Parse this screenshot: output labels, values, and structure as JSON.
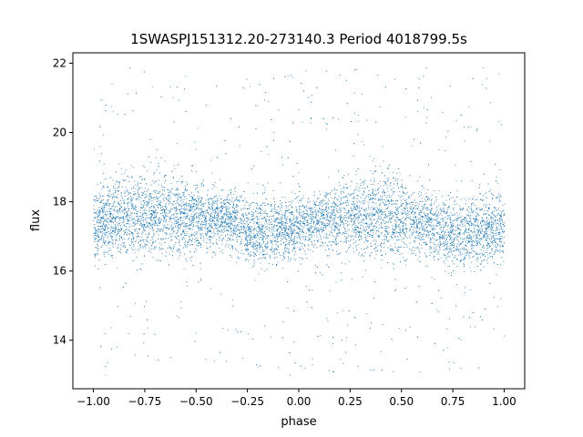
{
  "chart_data": {
    "type": "scatter",
    "title": "1SWASPJ151312.20-273140.3 Period 4018799.5s",
    "xlabel": "phase",
    "ylabel": "flux",
    "xlim": [
      -1.1,
      1.1
    ],
    "ylim": [
      12.6,
      22.3
    ],
    "xticks": [
      -1.0,
      -0.75,
      -0.5,
      -0.25,
      0.0,
      0.25,
      0.5,
      0.75,
      1.0
    ],
    "xtick_labels": [
      "−1.00",
      "−0.75",
      "−0.50",
      "−0.25",
      "0.00",
      "0.25",
      "0.50",
      "0.75",
      "1.00"
    ],
    "yticks": [
      14,
      16,
      18,
      20,
      22
    ],
    "ytick_labels": [
      "14",
      "16",
      "18",
      "20",
      "22"
    ],
    "grid": false,
    "point_color": "#1f77b4",
    "phase_range": [
      -1.0,
      1.0
    ],
    "flux_band": {
      "profile": [
        {
          "phase": -1.0,
          "center": 17.3,
          "halfwidth": 0.9
        },
        {
          "phase": -0.9,
          "center": 17.6,
          "halfwidth": 1.0
        },
        {
          "phase": -0.75,
          "center": 17.6,
          "halfwidth": 1.1
        },
        {
          "phase": -0.55,
          "center": 17.6,
          "halfwidth": 1.0
        },
        {
          "phase": -0.35,
          "center": 17.5,
          "halfwidth": 0.7
        },
        {
          "phase": -0.2,
          "center": 17.1,
          "halfwidth": 0.9
        },
        {
          "phase": -0.05,
          "center": 17.2,
          "halfwidth": 0.8
        },
        {
          "phase": 0.1,
          "center": 17.5,
          "halfwidth": 0.7
        },
        {
          "phase": 0.25,
          "center": 17.6,
          "halfwidth": 1.0
        },
        {
          "phase": 0.45,
          "center": 17.6,
          "halfwidth": 1.1
        },
        {
          "phase": 0.6,
          "center": 17.4,
          "halfwidth": 0.8
        },
        {
          "phase": 0.8,
          "center": 17.1,
          "halfwidth": 0.9
        },
        {
          "phase": 1.0,
          "center": 17.3,
          "halfwidth": 0.9
        }
      ],
      "outlier_min": 13.0,
      "outlier_max": 21.9,
      "n_points": 9000,
      "outlier_fraction": 0.08
    }
  }
}
